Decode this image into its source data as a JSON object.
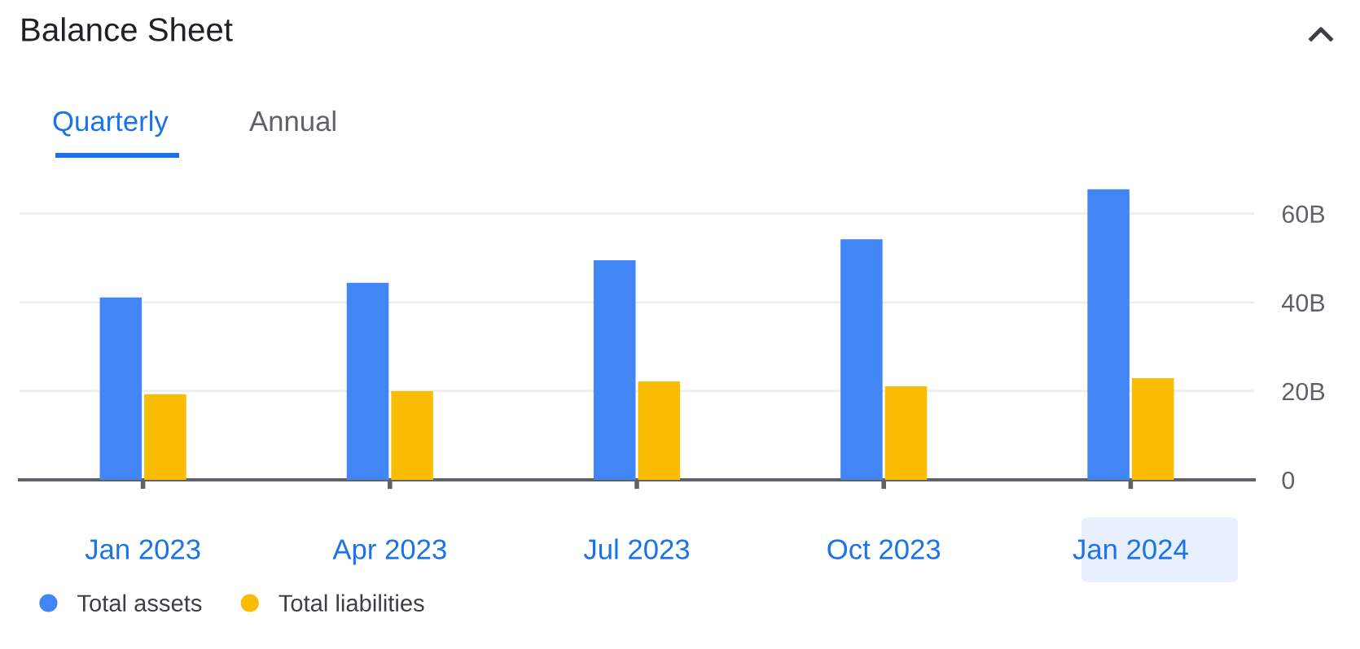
{
  "chart_data": {
    "type": "bar",
    "title": "Balance Sheet",
    "annotations": [
      "Quarterly",
      "Annual"
    ],
    "categories": [
      "Jan 2023",
      "Apr 2023",
      "Jul 2023",
      "Oct 2023",
      "Jan 2024"
    ],
    "series": [
      {
        "name": "Total assets",
        "color": "#4285f4",
        "values": [
          41.1,
          44.4,
          49.5,
          54.2,
          65.5
        ]
      },
      {
        "name": "Total liabilities",
        "color": "#fbbc04",
        "values": [
          19.3,
          20.0,
          22.2,
          21.1,
          22.9
        ]
      }
    ],
    "ylim": [
      0,
      66
    ],
    "yticks": [
      0,
      {
        "value": 20,
        "label": "20B"
      },
      {
        "value": 40,
        "label": "40B"
      },
      {
        "value": 60,
        "label": "60B"
      }
    ],
    "grid": "y",
    "legend": "bottom left"
  }
}
